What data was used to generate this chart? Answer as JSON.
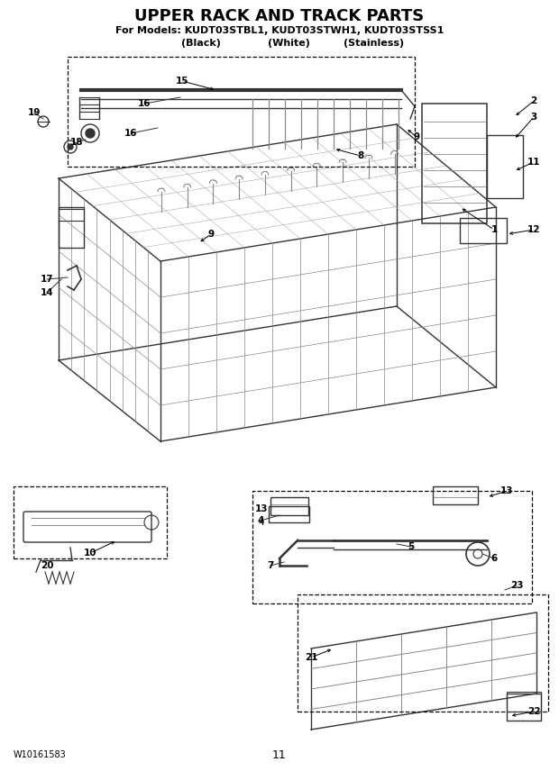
{
  "title": "UPPER RACK AND TRACK PARTS",
  "subtitle_line1": "For Models: KUDT03STBL1, KUDT03STWH1, KUDT03STSS1",
  "subtitle_line2_a": "(Black)",
  "subtitle_line2_b": "(White)",
  "subtitle_line2_c": "(Stainless)",
  "footer_left": "W10161583",
  "footer_center": "11",
  "bg_color": "#ffffff",
  "title_fontsize": 13,
  "subtitle_fontsize": 8,
  "label_fontsize": 7.5
}
